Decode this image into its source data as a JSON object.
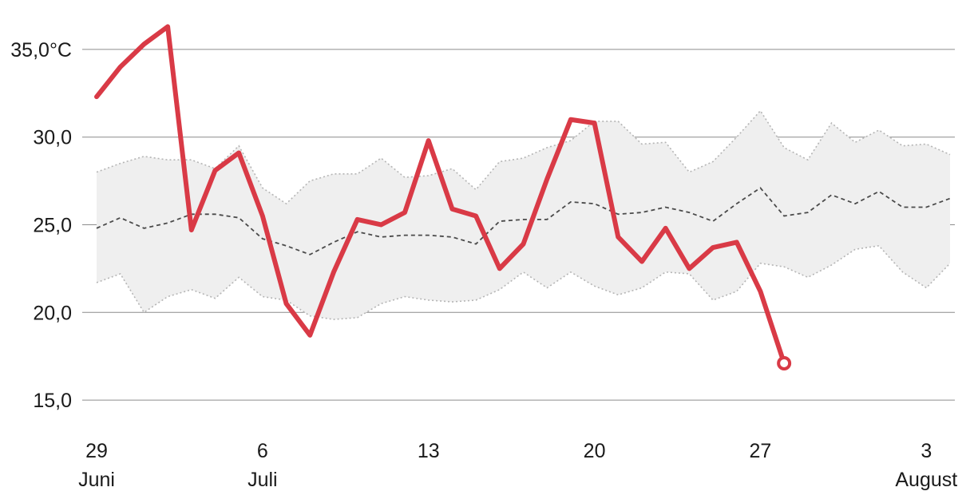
{
  "chart_data": {
    "type": "line",
    "title": "",
    "xlabel": "",
    "ylabel": "",
    "ylim": [
      13.5,
      37.5
    ],
    "y_ticks": [
      {
        "value": 35,
        "label": "35,0°C"
      },
      {
        "value": 30,
        "label": "30,0"
      },
      {
        "value": 25,
        "label": "25,0"
      },
      {
        "value": 20,
        "label": "20,0"
      },
      {
        "value": 15,
        "label": "15,0"
      }
    ],
    "x_range": [
      "2024-06-29",
      "2024-08-04"
    ],
    "x_ticks": [
      {
        "date": "2024-06-29",
        "day": "29",
        "month": "Juni"
      },
      {
        "date": "2024-07-06",
        "day": "6",
        "month": "Juli"
      },
      {
        "date": "2024-07-13",
        "day": "13",
        "month": ""
      },
      {
        "date": "2024-07-20",
        "day": "20",
        "month": ""
      },
      {
        "date": "2024-07-27",
        "day": "27",
        "month": ""
      },
      {
        "date": "2024-08-03",
        "day": "3",
        "month": "August"
      }
    ],
    "grid": true,
    "legend": "none",
    "colors": {
      "temperature": "#d93a46",
      "band": "#efefef",
      "mean": "#4a4a4a"
    },
    "series": [
      {
        "role": "temperature",
        "x": [
          "2024-06-29",
          "2024-06-30",
          "2024-07-01",
          "2024-07-02",
          "2024-07-03",
          "2024-07-04",
          "2024-07-05",
          "2024-07-06",
          "2024-07-07",
          "2024-07-08",
          "2024-07-09",
          "2024-07-10",
          "2024-07-11",
          "2024-07-12",
          "2024-07-13",
          "2024-07-14",
          "2024-07-15",
          "2024-07-16",
          "2024-07-17",
          "2024-07-18",
          "2024-07-19",
          "2024-07-20",
          "2024-07-21",
          "2024-07-22",
          "2024-07-23",
          "2024-07-24",
          "2024-07-25",
          "2024-07-26",
          "2024-07-27",
          "2024-07-28"
        ],
        "values": [
          32.3,
          34.0,
          35.3,
          36.3,
          24.7,
          28.1,
          29.1,
          25.5,
          20.5,
          18.7,
          22.3,
          25.3,
          25.0,
          25.7,
          29.8,
          25.9,
          25.5,
          22.5,
          23.9,
          27.6,
          31.0,
          30.8,
          24.3,
          22.9,
          24.8,
          22.5,
          23.7,
          24.0,
          21.2,
          17.1
        ]
      },
      {
        "role": "mean",
        "x": [
          "2024-06-29",
          "2024-06-30",
          "2024-07-01",
          "2024-07-02",
          "2024-07-03",
          "2024-07-04",
          "2024-07-05",
          "2024-07-06",
          "2024-07-07",
          "2024-07-08",
          "2024-07-09",
          "2024-07-10",
          "2024-07-11",
          "2024-07-12",
          "2024-07-13",
          "2024-07-14",
          "2024-07-15",
          "2024-07-16",
          "2024-07-17",
          "2024-07-18",
          "2024-07-19",
          "2024-07-20",
          "2024-07-21",
          "2024-07-22",
          "2024-07-23",
          "2024-07-24",
          "2024-07-25",
          "2024-07-26",
          "2024-07-27",
          "2024-07-28",
          "2024-07-29",
          "2024-07-30",
          "2024-07-31",
          "2024-08-01",
          "2024-08-02",
          "2024-08-03",
          "2024-08-04"
        ],
        "values": [
          24.8,
          25.4,
          24.8,
          25.1,
          25.6,
          25.6,
          25.4,
          24.2,
          23.8,
          23.3,
          24.0,
          24.6,
          24.3,
          24.4,
          24.4,
          24.3,
          23.9,
          25.2,
          25.3,
          25.3,
          26.3,
          26.2,
          25.6,
          25.7,
          26.0,
          25.7,
          25.2,
          26.2,
          27.1,
          25.5,
          25.7,
          26.7,
          26.2,
          26.9,
          26.0,
          26.0,
          26.5
        ]
      },
      {
        "role": "range-upper",
        "x": [
          "2024-06-29",
          "2024-06-30",
          "2024-07-01",
          "2024-07-02",
          "2024-07-03",
          "2024-07-04",
          "2024-07-05",
          "2024-07-06",
          "2024-07-07",
          "2024-07-08",
          "2024-07-09",
          "2024-07-10",
          "2024-07-11",
          "2024-07-12",
          "2024-07-13",
          "2024-07-14",
          "2024-07-15",
          "2024-07-16",
          "2024-07-17",
          "2024-07-18",
          "2024-07-19",
          "2024-07-20",
          "2024-07-21",
          "2024-07-22",
          "2024-07-23",
          "2024-07-24",
          "2024-07-25",
          "2024-07-26",
          "2024-07-27",
          "2024-07-28",
          "2024-07-29",
          "2024-07-30",
          "2024-07-31",
          "2024-08-01",
          "2024-08-02",
          "2024-08-03",
          "2024-08-04"
        ],
        "values": [
          28.0,
          28.5,
          28.9,
          28.7,
          28.7,
          28.2,
          29.5,
          27.1,
          26.2,
          27.5,
          27.9,
          27.9,
          28.8,
          27.7,
          27.8,
          28.2,
          27.0,
          28.6,
          28.8,
          29.4,
          29.8,
          30.9,
          30.9,
          29.6,
          29.7,
          28.0,
          28.6,
          30.0,
          31.5,
          29.4,
          28.7,
          30.8,
          29.7,
          30.4,
          29.5,
          29.6,
          29.0
        ]
      },
      {
        "role": "range-lower",
        "x": [
          "2024-06-29",
          "2024-06-30",
          "2024-07-01",
          "2024-07-02",
          "2024-07-03",
          "2024-07-04",
          "2024-07-05",
          "2024-07-06",
          "2024-07-07",
          "2024-07-08",
          "2024-07-09",
          "2024-07-10",
          "2024-07-11",
          "2024-07-12",
          "2024-07-13",
          "2024-07-14",
          "2024-07-15",
          "2024-07-16",
          "2024-07-17",
          "2024-07-18",
          "2024-07-19",
          "2024-07-20",
          "2024-07-21",
          "2024-07-22",
          "2024-07-23",
          "2024-07-24",
          "2024-07-25",
          "2024-07-26",
          "2024-07-27",
          "2024-07-28",
          "2024-07-29",
          "2024-07-30",
          "2024-07-31",
          "2024-08-01",
          "2024-08-02",
          "2024-08-03",
          "2024-08-04"
        ],
        "values": [
          21.7,
          22.2,
          20.0,
          20.9,
          21.3,
          20.8,
          22.0,
          20.9,
          20.7,
          19.8,
          19.6,
          19.7,
          20.5,
          20.9,
          20.7,
          20.6,
          20.7,
          21.3,
          22.3,
          21.4,
          22.3,
          21.5,
          21.0,
          21.4,
          22.3,
          22.2,
          20.7,
          21.2,
          22.8,
          22.6,
          22.0,
          22.7,
          23.6,
          23.8,
          22.3,
          21.4,
          22.8
        ]
      }
    ]
  }
}
